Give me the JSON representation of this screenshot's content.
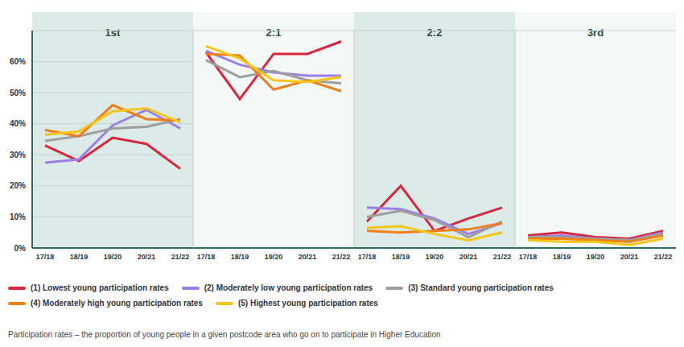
{
  "chart_data": [
    {
      "type": "line",
      "title": "1st",
      "categories": [
        "17/18",
        "18/19",
        "19/20",
        "20/21",
        "21/22"
      ],
      "ylim": [
        0,
        70
      ],
      "yticks": [
        {
          "value": 0,
          "label": "0%"
        },
        {
          "value": 10,
          "label": "10%"
        },
        {
          "value": 20,
          "label": "20%"
        },
        {
          "value": 30,
          "label": "30%"
        },
        {
          "value": 40,
          "label": "40%"
        },
        {
          "value": 50,
          "label": "50%"
        },
        {
          "value": 60,
          "label": "60%"
        }
      ],
      "grid": true,
      "legend": "bottom",
      "series": [
        {
          "name": "(1) Lowest young participation rates",
          "color": "#d7263d",
          "values": [
            33,
            28,
            35.5,
            33.5,
            25.5
          ]
        },
        {
          "name": "(2) Moderately low young participation rates",
          "color": "#9b7fe6",
          "values": [
            27.5,
            28.5,
            39.5,
            44.5,
            38.5
          ]
        },
        {
          "name": "(3) Standard young participation rates",
          "color": "#9e9e9e",
          "values": [
            34.5,
            36,
            38.5,
            39,
            41.5
          ]
        },
        {
          "name": "(4) Moderately high young participation rates",
          "color": "#f07f1a",
          "values": [
            38,
            36,
            46,
            41.5,
            41
          ]
        },
        {
          "name": "(5) Highest young participation rates",
          "color": "#f5c518",
          "values": [
            36.5,
            37.5,
            44,
            45,
            40.5
          ]
        }
      ]
    },
    {
      "type": "line",
      "title": "2:1",
      "categories": [
        "17/18",
        "18/19",
        "19/20",
        "20/21",
        "21/22"
      ],
      "ylim": [
        0,
        70
      ],
      "yticks": [
        {
          "value": 0,
          "label": "0%"
        },
        {
          "value": 10,
          "label": "10%"
        },
        {
          "value": 20,
          "label": "20%"
        },
        {
          "value": 30,
          "label": "30%"
        },
        {
          "value": 40,
          "label": "40%"
        },
        {
          "value": 50,
          "label": "50%"
        },
        {
          "value": 60,
          "label": "60%"
        }
      ],
      "grid": true,
      "tick_labels": "x",
      "series": [
        {
          "name": "(1) Lowest young participation rates",
          "color": "#d7263d",
          "values": [
            63,
            48,
            62.5,
            62.5,
            66.5
          ]
        },
        {
          "name": "(2) Moderately low young participation rates",
          "color": "#9b7fe6",
          "values": [
            63.5,
            59,
            56.5,
            55.5,
            55.5
          ]
        },
        {
          "name": "(3) Standard young participation rates",
          "color": "#9e9e9e",
          "values": [
            60.5,
            55,
            57,
            54,
            53
          ]
        },
        {
          "name": "(4) Moderately high young participation rates",
          "color": "#f07f1a",
          "values": [
            62.5,
            62,
            51,
            54,
            50.5
          ]
        },
        {
          "name": "(5) Highest young participation rates",
          "color": "#f5c518",
          "values": [
            65,
            61,
            54,
            53.5,
            55
          ]
        }
      ]
    },
    {
      "type": "line",
      "title": "2:2",
      "categories": [
        "17/18",
        "18/19",
        "19/20",
        "20/21",
        "21/22"
      ],
      "ylim": [
        0,
        70
      ],
      "yticks": [
        {
          "value": 0,
          "label": "0%"
        },
        {
          "value": 10,
          "label": "10%"
        },
        {
          "value": 20,
          "label": "20%"
        },
        {
          "value": 30,
          "label": "30%"
        },
        {
          "value": 40,
          "label": "40%"
        },
        {
          "value": 50,
          "label": "50%"
        },
        {
          "value": 60,
          "label": "60%"
        }
      ],
      "grid": true,
      "tick_labels": "x",
      "series": [
        {
          "name": "(1) Lowest young participation rates",
          "color": "#d7263d",
          "values": [
            8.5,
            20,
            5.5,
            9.5,
            13
          ]
        },
        {
          "name": "(2) Moderately low young participation rates",
          "color": "#9b7fe6",
          "values": [
            13,
            12.5,
            9.5,
            4.5,
            8
          ]
        },
        {
          "name": "(3) Standard young participation rates",
          "color": "#9e9e9e",
          "values": [
            10,
            12,
            9,
            3.5,
            8.5
          ]
        },
        {
          "name": "(4) Moderately high young participation rates",
          "color": "#f07f1a",
          "values": [
            5.5,
            5,
            5.5,
            6,
            8
          ]
        },
        {
          "name": "(5) Highest young participation rates",
          "color": "#f5c518",
          "values": [
            6.5,
            7,
            4.5,
            2.5,
            5
          ]
        }
      ]
    },
    {
      "type": "line",
      "title": "3rd",
      "categories": [
        "17/18",
        "18/19",
        "19/20",
        "20/21",
        "21/22"
      ],
      "ylim": [
        0,
        70
      ],
      "yticks": [
        {
          "value": 0,
          "label": "0%"
        },
        {
          "value": 10,
          "label": "10%"
        },
        {
          "value": 20,
          "label": "20%"
        },
        {
          "value": 30,
          "label": "30%"
        },
        {
          "value": 40,
          "label": "40%"
        },
        {
          "value": 50,
          "label": "50%"
        },
        {
          "value": 60,
          "label": "60%"
        }
      ],
      "grid": true,
      "tick_labels": "x",
      "series": [
        {
          "name": "(1) Lowest young participation rates",
          "color": "#d7263d",
          "values": [
            4,
            5,
            3.5,
            3,
            5.5
          ]
        },
        {
          "name": "(2) Moderately low young participation rates",
          "color": "#9b7fe6",
          "values": [
            3.5,
            4,
            3,
            2.5,
            5
          ]
        },
        {
          "name": "(3) Standard young participation rates",
          "color": "#9e9e9e",
          "values": [
            3.5,
            3.5,
            3,
            2.5,
            4.5
          ]
        },
        {
          "name": "(4) Moderately high young participation rates",
          "color": "#f07f1a",
          "values": [
            3,
            3,
            2.5,
            2,
            4
          ]
        },
        {
          "name": "(5) Highest young participation rates",
          "color": "#f5c518",
          "values": [
            2.5,
            2,
            2,
            1,
            3
          ]
        }
      ]
    }
  ],
  "footnote": "Participation rates – the proportion of young people in a given postcode area who go on to participate in Higher Education"
}
